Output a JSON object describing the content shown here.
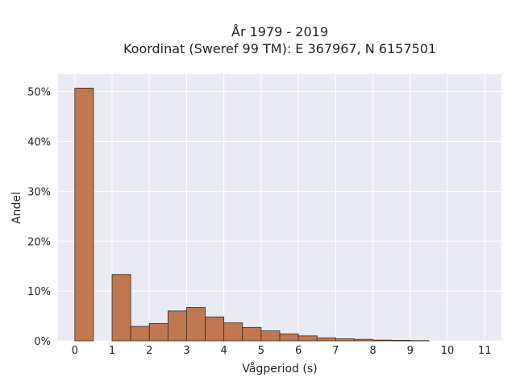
{
  "chart_data": {
    "type": "bar",
    "title_line1": "År 1979 - 2019",
    "title_line2": "Koordinat (Sweref 99 TM): E 367967, N 6157501",
    "xlabel": "Vågperiod (s)",
    "ylabel": "Andel",
    "xlim": [
      -0.45,
      11.45
    ],
    "ylim": [
      0,
      53.5
    ],
    "bin_width": 0.5,
    "x_ticks": [
      0,
      1,
      2,
      3,
      4,
      5,
      6,
      7,
      8,
      9,
      10,
      11
    ],
    "x_tick_labels": [
      "0",
      "1",
      "2",
      "3",
      "4",
      "5",
      "6",
      "7",
      "8",
      "9",
      "10",
      "11"
    ],
    "y_ticks": [
      0,
      10,
      20,
      30,
      40,
      50
    ],
    "y_tick_labels": [
      "0%",
      "10%",
      "20%",
      "30%",
      "40%",
      "50%"
    ],
    "bins": [
      {
        "x0": 0.0,
        "value": 50.7
      },
      {
        "x0": 1.0,
        "value": 13.3
      },
      {
        "x0": 1.5,
        "value": 2.9
      },
      {
        "x0": 2.0,
        "value": 3.5
      },
      {
        "x0": 2.5,
        "value": 6.0
      },
      {
        "x0": 3.0,
        "value": 6.7
      },
      {
        "x0": 3.5,
        "value": 4.8
      },
      {
        "x0": 4.0,
        "value": 3.6
      },
      {
        "x0": 4.5,
        "value": 2.7
      },
      {
        "x0": 5.0,
        "value": 2.0
      },
      {
        "x0": 5.5,
        "value": 1.4
      },
      {
        "x0": 6.0,
        "value": 1.0
      },
      {
        "x0": 6.5,
        "value": 0.6
      },
      {
        "x0": 7.0,
        "value": 0.4
      },
      {
        "x0": 7.5,
        "value": 0.3
      },
      {
        "x0": 8.0,
        "value": 0.15
      },
      {
        "x0": 8.5,
        "value": 0.1
      },
      {
        "x0": 9.0,
        "value": 0.05
      }
    ],
    "grid": true,
    "colors": {
      "bar_fill": "#c07850",
      "bar_edge": "#3a2a20",
      "plot_background": "#eaeaf2",
      "grid": "#ffffff"
    }
  }
}
